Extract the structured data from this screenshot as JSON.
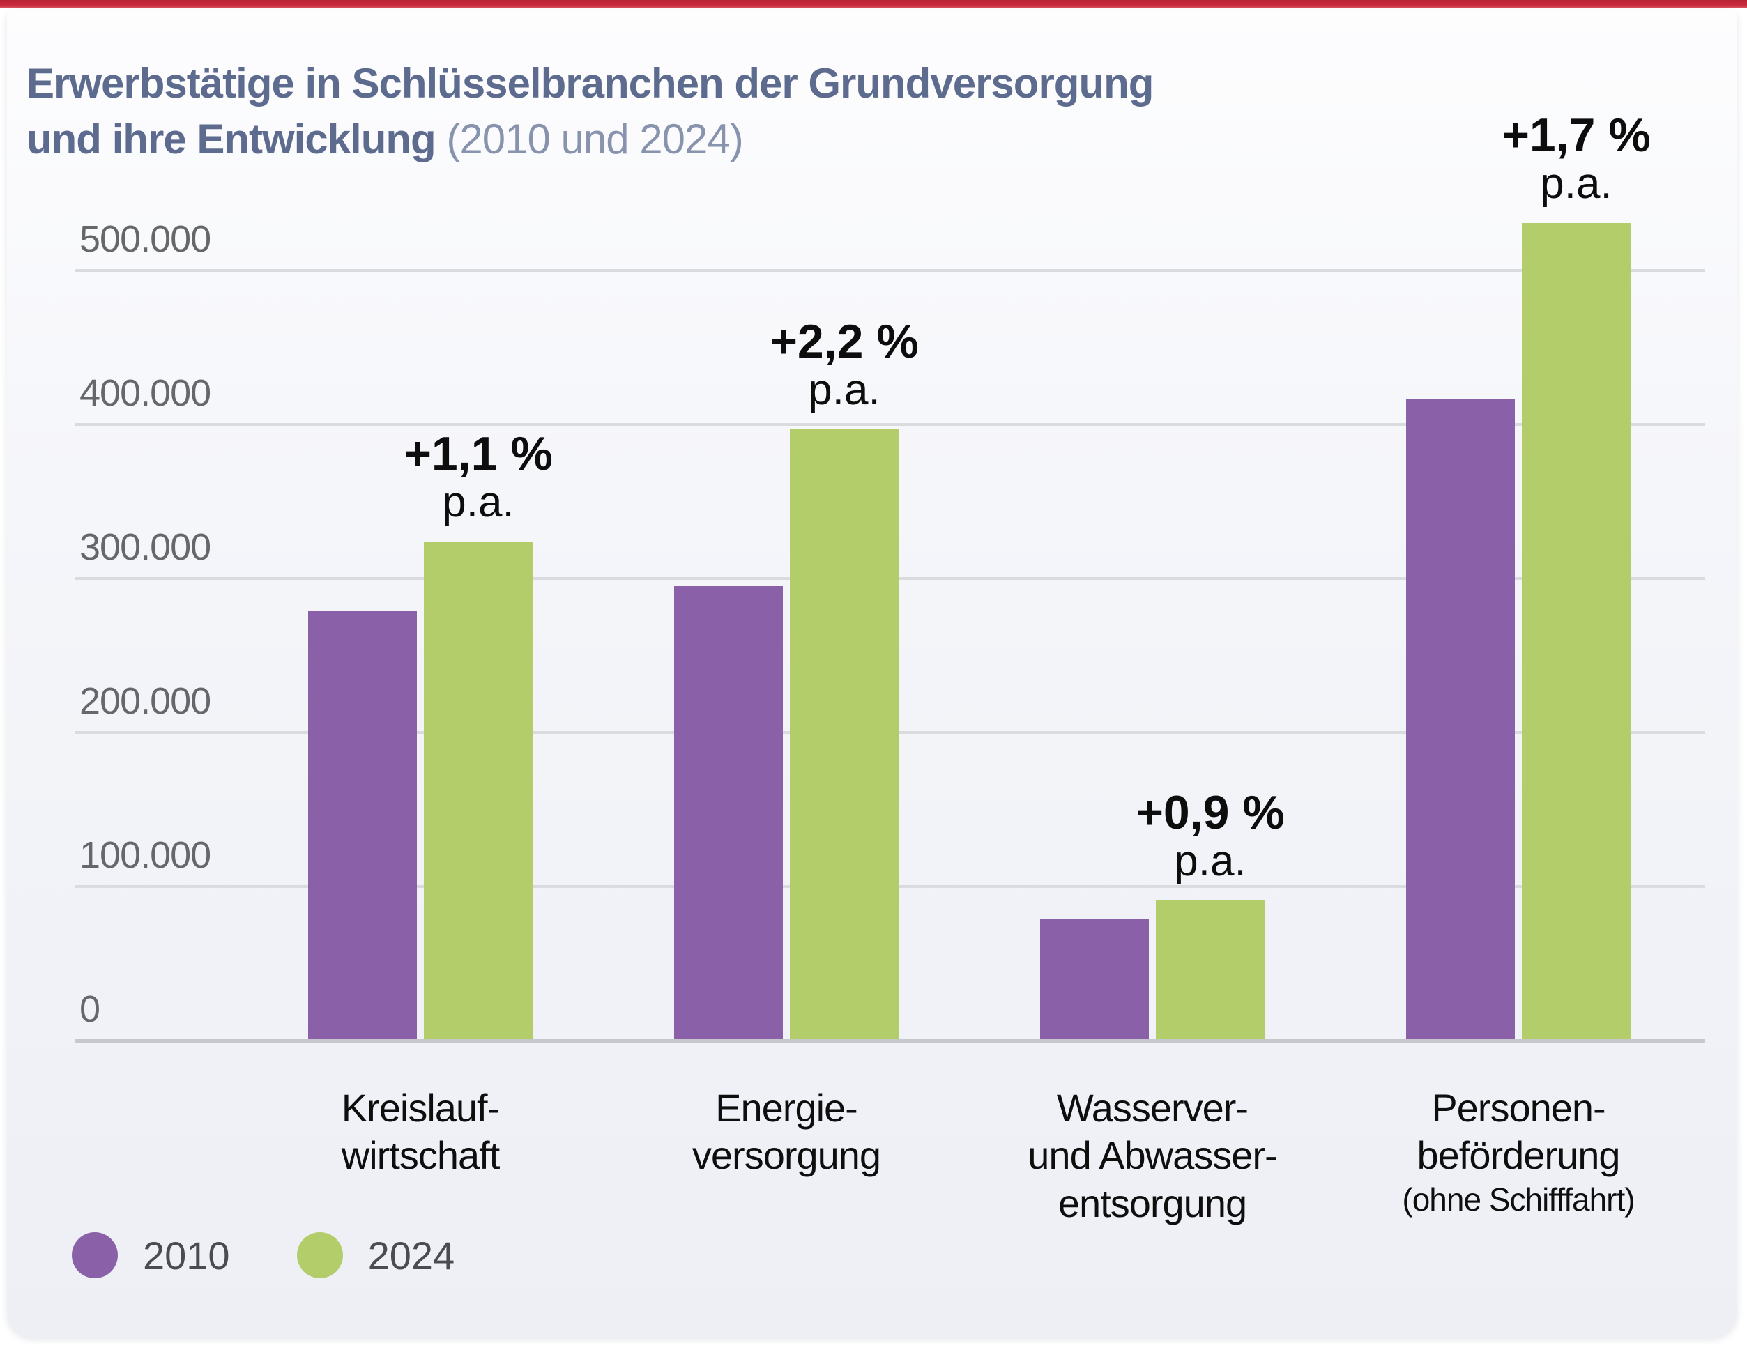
{
  "title": {
    "line1_bold": "Erwerbstätige in Schlüsselbranchen der Grundversorgung",
    "line2_bold": "und ihre Entwicklung",
    "line2_light": " (2010 und 2024)"
  },
  "colors": {
    "top_bar_red": "#c7293c",
    "series_2010_purple": "#8a61a8",
    "series_2024_green": "#b4cd6b",
    "title_blue": "#5c6b8e",
    "gridline_gray": "#dadbde",
    "text_black": "#0d0d0d"
  },
  "chart_data": {
    "type": "bar",
    "title": "Erwerbstätige in Schlüsselbranchen der Grundversorgung und ihre Entwicklung (2010 und 2024)",
    "categories": [
      "Kreislaufwirtschaft",
      "Energieversorgung",
      "Wasserver- und Abwasserentsorgung",
      "Personenbeförderung (ohne Schifffahrt)"
    ],
    "category_label_lines": [
      [
        "Kreislauf-",
        "wirtschaft"
      ],
      [
        "Energie-",
        "versorgung"
      ],
      [
        "Wasserver-",
        "und Abwasser-",
        "entsorgung"
      ],
      [
        "Personen-",
        "beförderung",
        "(ohne Schifffahrt)"
      ]
    ],
    "category_ids": [
      "kreislaufwirtschaft",
      "energieversorgung",
      "wasserentsorgung",
      "personenbefoerderung"
    ],
    "series": [
      {
        "name": "2010",
        "values": [
          278000,
          294000,
          78000,
          416000
        ]
      },
      {
        "name": "2024",
        "values": [
          323000,
          396000,
          90000,
          530000
        ]
      }
    ],
    "annotations": [
      {
        "delta": "+1,1 %",
        "per_annum": "p.a."
      },
      {
        "delta": "+2,2 %",
        "per_annum": "p.a."
      },
      {
        "delta": "+0,9 %",
        "per_annum": "p.a."
      },
      {
        "delta": "+1,7 %",
        "per_annum": "p.a."
      }
    ],
    "ylim": [
      0,
      500000
    ],
    "y_ticks": [
      {
        "value": 500000,
        "label": "500.000"
      },
      {
        "value": 400000,
        "label": "400.000"
      },
      {
        "value": 300000,
        "label": "300.000"
      },
      {
        "value": 200000,
        "label": "200.000"
      },
      {
        "value": 100000,
        "label": "100.000"
      },
      {
        "value": 0,
        "label": "0"
      }
    ],
    "grid": true,
    "legend_position": "bottom-left"
  },
  "legend": {
    "items": [
      {
        "label": "2010",
        "color": "#8a61a8"
      },
      {
        "label": "2024",
        "color": "#b4cd6b"
      }
    ]
  }
}
